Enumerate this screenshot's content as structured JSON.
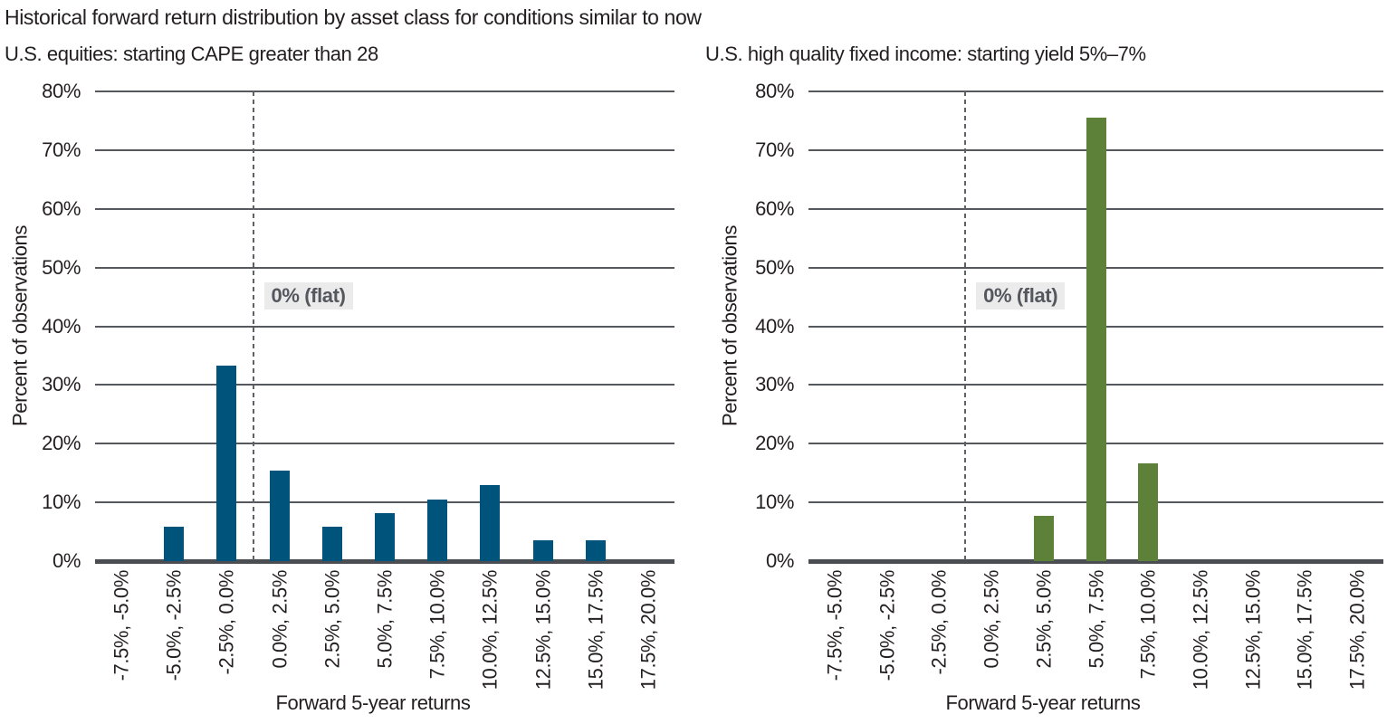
{
  "title": "Historical forward return distribution by asset class for conditions similar to now",
  "colors": {
    "background": "#FFFFFF",
    "text": "#231F20",
    "gridline": "#55595E",
    "axis_line": "#4A4E53",
    "dashed_line": "#5E6268",
    "flat_label_text": "#54585E",
    "flat_label_bg": "#EBEBEB",
    "equities_bar": "#00547C",
    "fixed_income_bar": "#5D8139"
  },
  "chart_data": [
    {
      "type": "bar",
      "title": "U.S. equities: starting CAPE greater than 28",
      "xlabel": "Forward 5-year returns",
      "ylabel": "Percent of observations",
      "ylim": [
        0,
        80
      ],
      "ytick_step": 10,
      "ytick_suffix": "%",
      "grid": true,
      "bar_color": "#00547C",
      "categories": [
        "-7.5%, -5.0%",
        "-5.0%, -2.5%",
        "-2.5%, 0.0%",
        "0.0%, 2.5%",
        "2.5%, 5.0%",
        "5.0%, 7.5%",
        "7.5%, 10.0%",
        "10.0%, 12.5%",
        "12.5%, 15.0%",
        "15.0%, 17.5%",
        "17.5%, 20.0%"
      ],
      "values": [
        0,
        5.8,
        33.3,
        15.4,
        5.8,
        8.1,
        10.5,
        13,
        3.5,
        3.5,
        0
      ],
      "zero_line": {
        "label": "0% (flat)",
        "after_category_index": 2
      }
    },
    {
      "type": "bar",
      "title": "U.S. high quality fixed income: starting yield 5%–7%",
      "xlabel": "Forward 5-year returns",
      "ylabel": "Percent of observations",
      "ylim": [
        0,
        80
      ],
      "ytick_step": 10,
      "ytick_suffix": "%",
      "grid": true,
      "bar_color": "#5D8139",
      "categories": [
        "-7.5%, -5.0%",
        "-5.0%, -2.5%",
        "-2.5%, 0.0%",
        "0.0%, 2.5%",
        "2.5%, 5.0%",
        "5.0%, 7.5%",
        "7.5%, 10.0%",
        "10.0%, 12.5%",
        "12.5%, 15.0%",
        "15.0%, 17.5%",
        "17.5%, 20.0%"
      ],
      "values": [
        0,
        0,
        0,
        0,
        7.7,
        75.6,
        16.7,
        0,
        0,
        0,
        0
      ],
      "zero_line": {
        "label": "0% (flat)",
        "after_category_index": 2
      }
    }
  ]
}
